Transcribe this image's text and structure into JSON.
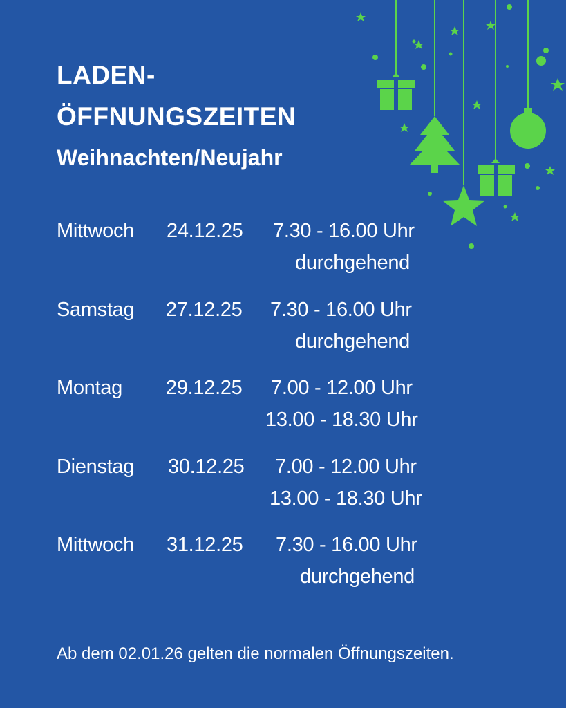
{
  "heading": {
    "line1": "LADEN-",
    "line2": "ÖFFNUNGSZEITEN",
    "line3": "Weihnachten/Neujahr"
  },
  "schedule": [
    {
      "day": "Mittwoch",
      "date": "24.12.25",
      "time1": "7.30 - 16.00 Uhr",
      "time2": "durchgehend"
    },
    {
      "day": "Samstag",
      "date": "27.12.25",
      "time1": "7.30 - 16.00 Uhr",
      "time2": "durchgehend"
    },
    {
      "day": "Montag",
      "date": "29.12.25",
      "time1": "7.00 - 12.00 Uhr",
      "time2": "13.00 - 18.30 Uhr"
    },
    {
      "day": "Dienstag",
      "date": "30.12.25",
      "time1": "7.00 - 12.00 Uhr",
      "time2": "13.00 - 18.30 Uhr"
    },
    {
      "day": "Mittwoch",
      "date": "31.12.25",
      "time1": "7.30 - 16.00 Uhr",
      "time2": "durchgehend"
    }
  ],
  "footer": "Ab dem 02.01.26 gelten die normalen Öffnungszeiten.",
  "colors": {
    "background": "#2356A5",
    "text": "#FFFFFF",
    "ornament": "#5BD44A"
  },
  "decorations": [
    "gift-icon",
    "christmas-tree-icon",
    "star-icon",
    "bauble-icon",
    "gift-icon"
  ]
}
